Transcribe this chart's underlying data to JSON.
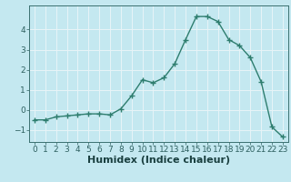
{
  "x": [
    0,
    1,
    2,
    3,
    4,
    5,
    6,
    7,
    8,
    9,
    10,
    11,
    12,
    13,
    14,
    15,
    16,
    17,
    18,
    19,
    20,
    21,
    22,
    23
  ],
  "y": [
    -0.5,
    -0.5,
    -0.35,
    -0.3,
    -0.25,
    -0.2,
    -0.2,
    -0.25,
    0.05,
    0.7,
    1.5,
    1.35,
    1.6,
    2.3,
    3.5,
    4.65,
    4.65,
    4.4,
    3.5,
    3.2,
    2.6,
    1.4,
    -0.85,
    -1.35
  ],
  "line_color": "#2e7d6e",
  "bg_color": "#c4e8f0",
  "grid_color": "#e8f4f8",
  "xlabel": "Humidex (Indice chaleur)",
  "xlim": [
    -0.5,
    23.5
  ],
  "ylim": [
    -1.6,
    5.2
  ],
  "yticks": [
    -1,
    0,
    1,
    2,
    3,
    4
  ],
  "xticks": [
    0,
    1,
    2,
    3,
    4,
    5,
    6,
    7,
    8,
    9,
    10,
    11,
    12,
    13,
    14,
    15,
    16,
    17,
    18,
    19,
    20,
    21,
    22,
    23
  ],
  "marker": "+",
  "linewidth": 1.0,
  "markersize": 4,
  "markeredgewidth": 1.0,
  "xlabel_fontsize": 8,
  "tick_fontsize": 6.5,
  "tick_color": "#2e6060",
  "label_color": "#1a4040",
  "spine_color": "#3a7070"
}
